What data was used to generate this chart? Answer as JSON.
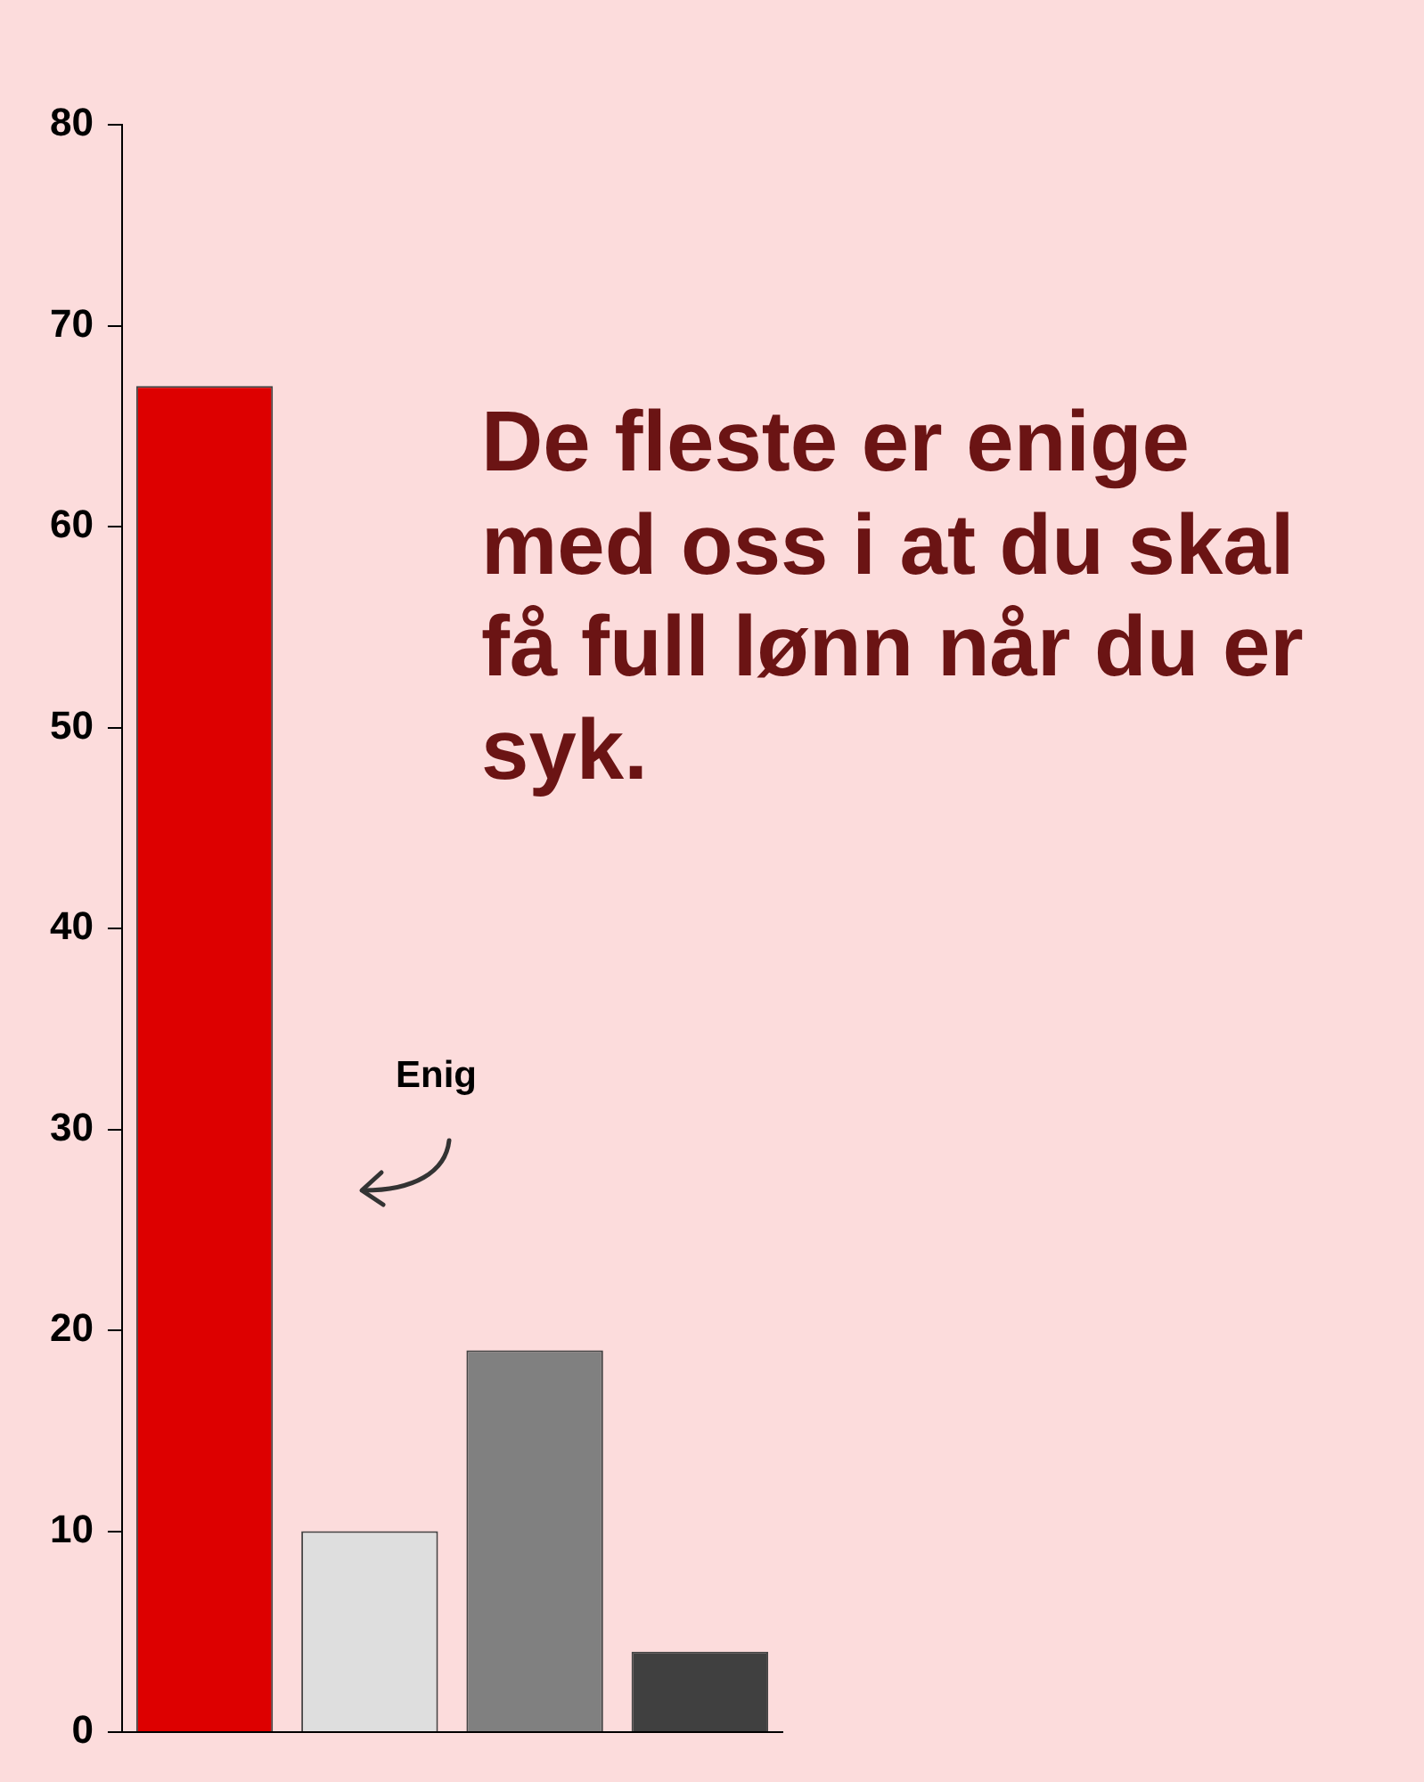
{
  "chart_data": {
    "type": "bar",
    "title": "De fleste er enige med oss i at du skal få full lønn når du er syk.",
    "categories": [
      null,
      null,
      null,
      null
    ],
    "values": [
      67,
      10,
      19,
      4
    ],
    "colors": [
      "#dd0000",
      "#dedede",
      "#808080",
      "#404040"
    ],
    "ylim": [
      0,
      80
    ],
    "yticks": [
      0,
      10,
      20,
      30,
      40,
      50,
      60,
      70,
      80
    ],
    "tick_labels": "y",
    "annotations": [
      "Enig"
    ]
  }
}
